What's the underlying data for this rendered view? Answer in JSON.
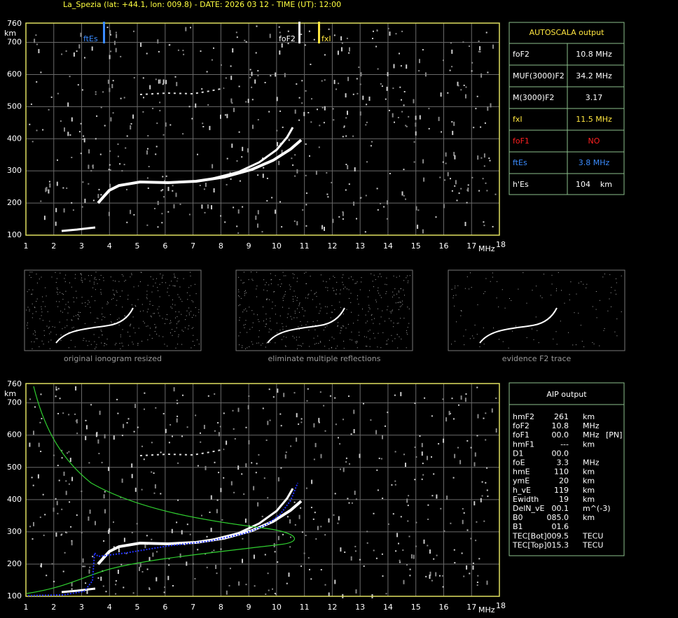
{
  "header": {
    "title": "La_Spezia (lat: +44.1, lon: 009.8) - DATE: 2026 03 12 - TIME (UT): 12:00"
  },
  "ionogram_top": {
    "y_unit": "km",
    "x_unit": "MHz",
    "yticks": [
      100,
      200,
      300,
      400,
      500,
      600,
      700,
      760
    ],
    "xticks": [
      1,
      2,
      3,
      4,
      5,
      6,
      7,
      8,
      9,
      10,
      11,
      12,
      13,
      14,
      15,
      16,
      17,
      18
    ],
    "markers": [
      "ftEs",
      "foF2",
      "fxI"
    ]
  },
  "autoscala": {
    "title": "AUTOSCALA output",
    "rows": [
      [
        "foF2",
        "10.8 MHz"
      ],
      [
        "MUF(3000)F2",
        "34.2 MHz"
      ],
      [
        "M(3000)F2",
        "3.17"
      ],
      [
        "fxI",
        "11.5 MHz"
      ],
      [
        "foF1",
        "NO"
      ],
      [
        "ftEs",
        "3.8 MHz"
      ],
      [
        "h'Es",
        "104    km"
      ]
    ]
  },
  "thumbnails": [
    "original ionogram resized",
    "eliminate multiple reflections",
    "evidence F2 trace"
  ],
  "ionogram_bottom": {
    "y_unit": "km",
    "x_unit": "MHz",
    "yticks": [
      100,
      200,
      300,
      400,
      500,
      600,
      700,
      760
    ],
    "xticks": [
      1,
      2,
      3,
      4,
      5,
      6,
      7,
      8,
      9,
      10,
      11,
      12,
      13,
      14,
      15,
      16,
      17,
      18
    ]
  },
  "aip": {
    "title": "AIP output",
    "rows": [
      [
        "hmF2",
        "261",
        "km",
        ""
      ],
      [
        "foF2",
        "10.8",
        "MHz",
        ""
      ],
      [
        "foF1",
        "00.0",
        "MHz",
        "[PN]"
      ],
      [
        "hmF1",
        "---",
        "km",
        ""
      ],
      [
        "D1",
        "00.0",
        "",
        ""
      ],
      [
        "foE",
        "3.3",
        "MHz",
        ""
      ],
      [
        "hmE",
        "110",
        "km",
        ""
      ],
      [
        "ymE",
        "20",
        "km",
        ""
      ],
      [
        "h_vE",
        "119",
        "km",
        ""
      ],
      [
        "Ewidth",
        "19",
        "km",
        ""
      ],
      [
        "DelN_vE",
        "00.1",
        "m^(-3)",
        ""
      ],
      [
        "B0",
        "085.0",
        "km",
        ""
      ],
      [
        "B1",
        "01.6",
        "",
        ""
      ],
      [
        "TEC[Bot]",
        "009.5",
        "TECU",
        ""
      ],
      [
        "TEC[Top]",
        "015.3",
        "TECU",
        ""
      ]
    ]
  }
}
